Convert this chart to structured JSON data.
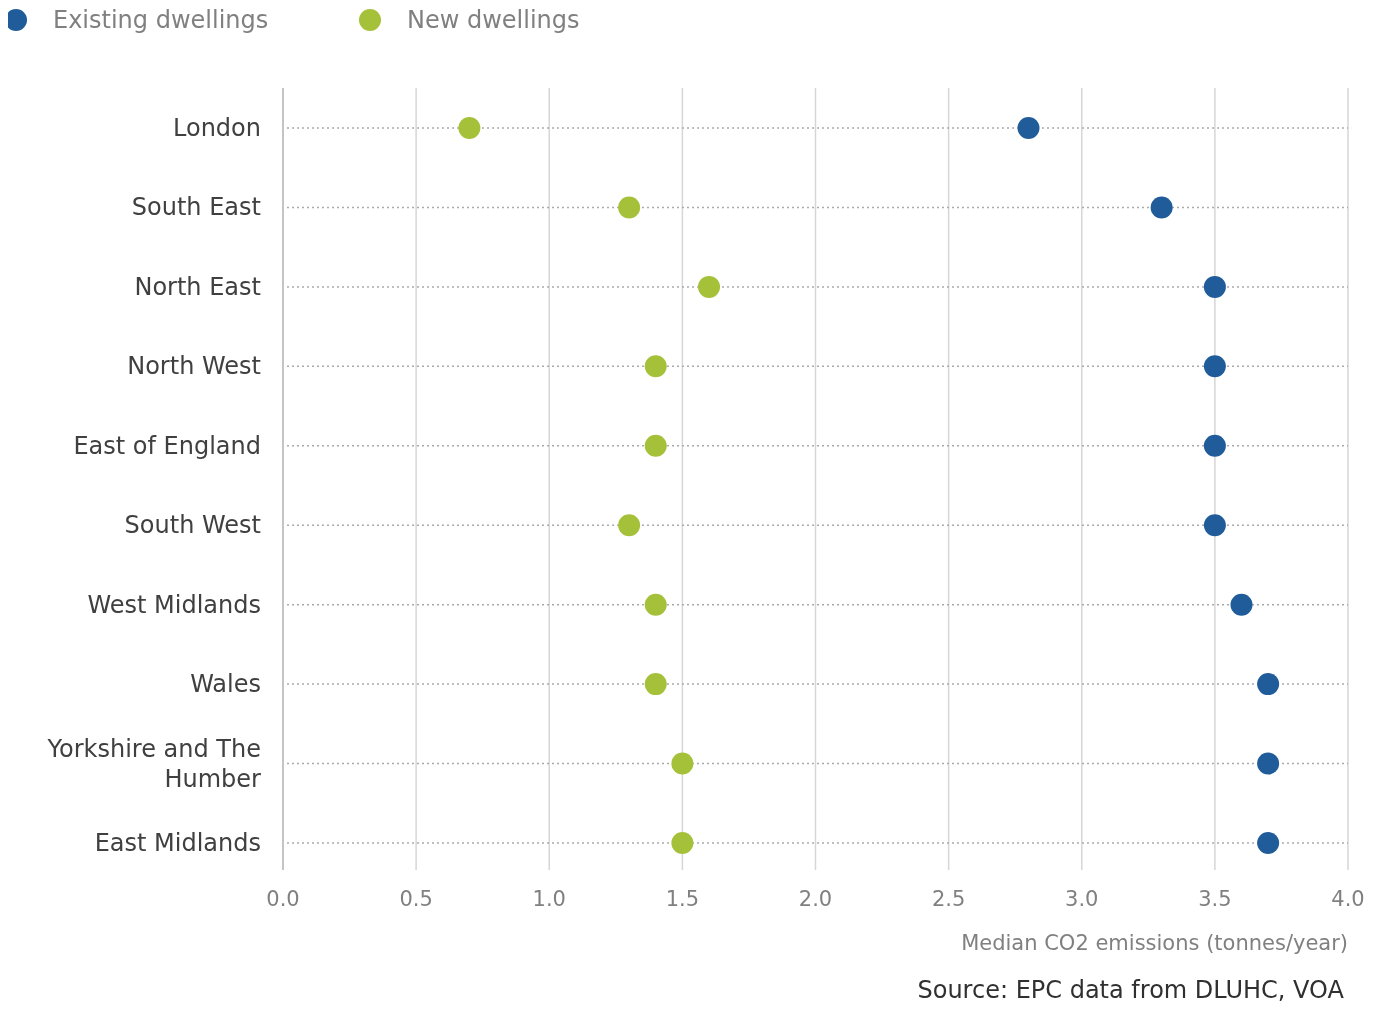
{
  "chart_data": {
    "type": "scatter",
    "orientation": "horizontal",
    "categories": [
      "London",
      "South East",
      "North East",
      "North West",
      "East of England",
      "South West",
      "West Midlands",
      "Wales",
      "Yorkshire and The Humber",
      "East Midlands"
    ],
    "series": [
      {
        "name": "Existing dwellings",
        "color": "#1f5c99",
        "values": [
          2.8,
          3.3,
          3.5,
          3.5,
          3.5,
          3.5,
          3.6,
          3.7,
          3.7,
          3.7
        ]
      },
      {
        "name": "New dwellings",
        "color": "#a5c13a",
        "values": [
          0.7,
          1.3,
          1.6,
          1.4,
          1.4,
          1.3,
          1.4,
          1.4,
          1.5,
          1.5
        ]
      }
    ],
    "xlim": [
      0,
      4
    ],
    "xticks": [
      {
        "value": 0,
        "label": "0.0"
      },
      {
        "value": 0.5,
        "label": "0.5"
      },
      {
        "value": 1,
        "label": "1.0"
      },
      {
        "value": 1.5,
        "label": "1.5"
      },
      {
        "value": 2,
        "label": "2.0"
      },
      {
        "value": 2.5,
        "label": "2.5"
      },
      {
        "value": 3,
        "label": "3.0"
      },
      {
        "value": 3.5,
        "label": "3.5"
      },
      {
        "value": 4,
        "label": "4.0"
      }
    ],
    "xlabel": "Median CO2 emissions (tonnes/year)",
    "annotations": [
      "Source: EPC data from DLUHC, VOA"
    ],
    "grid": true,
    "legend": "top left",
    "marker": "circle"
  }
}
